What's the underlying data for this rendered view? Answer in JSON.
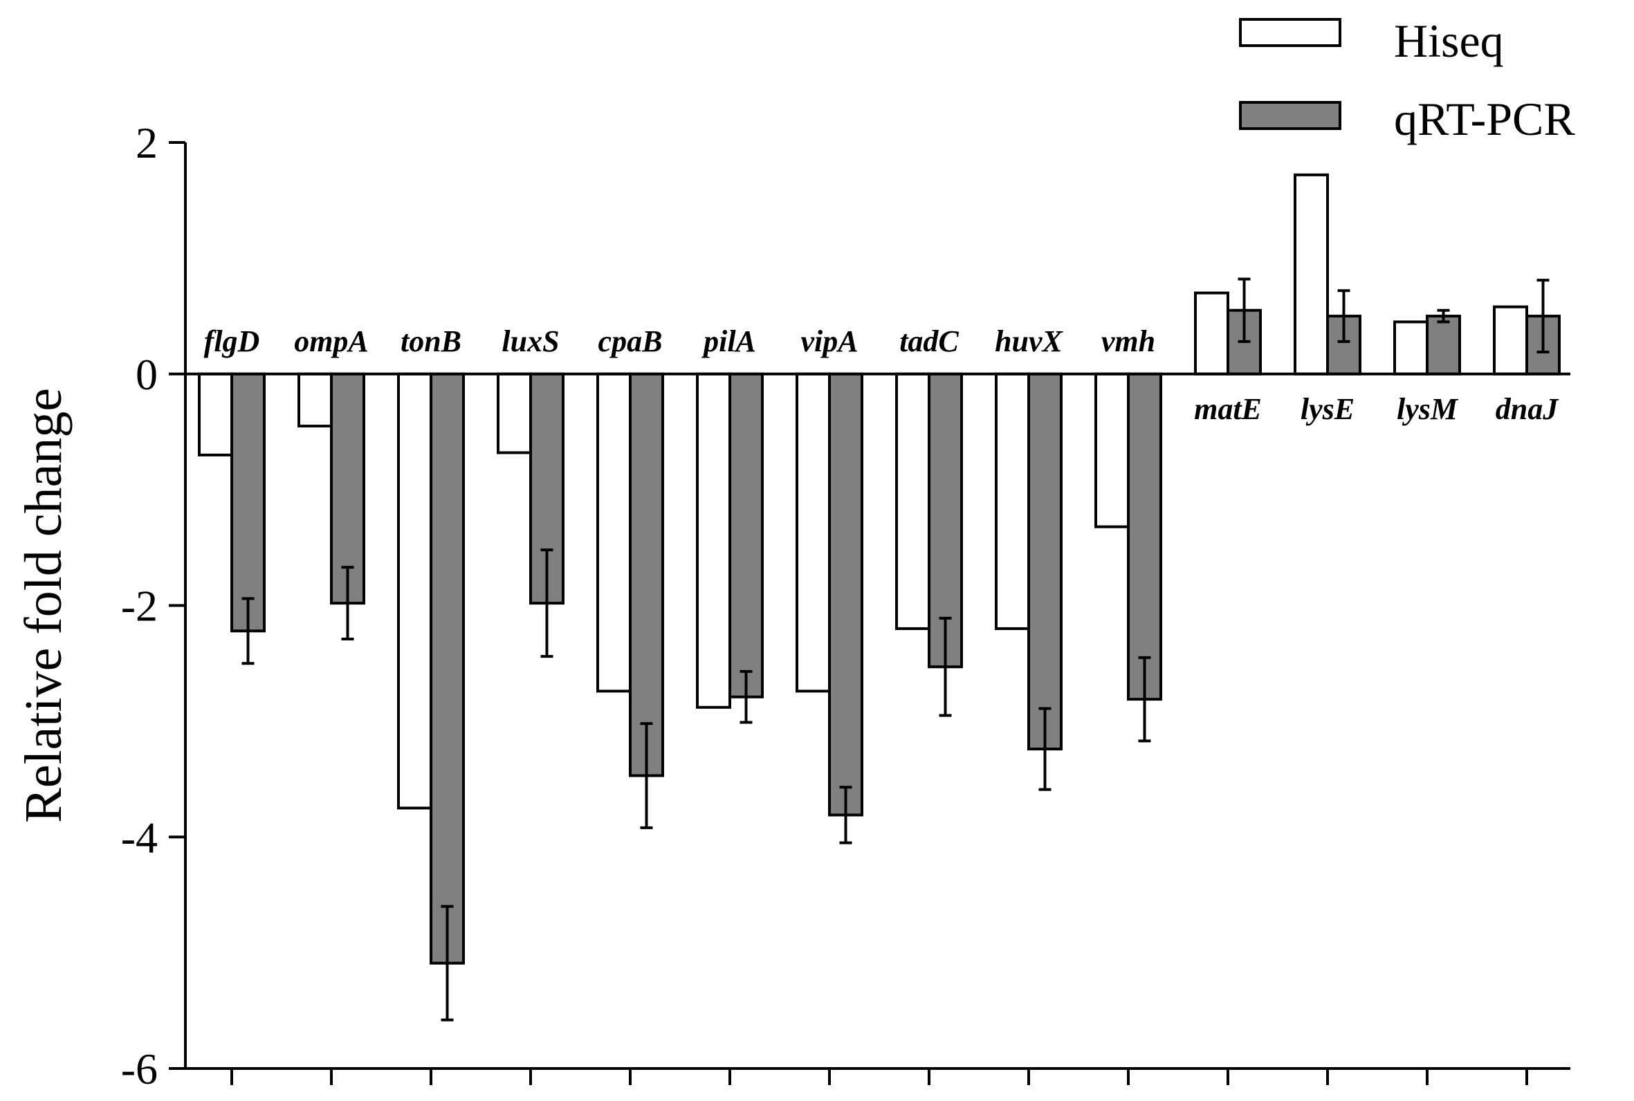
{
  "chart_data": {
    "type": "bar",
    "title": "",
    "xlabel": "",
    "ylabel": "Relative fold change",
    "ylim": [
      -6,
      2
    ],
    "yticks": [
      2,
      0,
      -2,
      -4,
      -6
    ],
    "grid": false,
    "legend_position": "top-right",
    "categories": [
      "flgD",
      "ompA",
      "tonB",
      "luxS",
      "cpaB",
      "pilA",
      "vipA",
      "tadC",
      "huvX",
      "vmh",
      "matE",
      "lysE",
      "lysM",
      "dnaJ"
    ],
    "series": [
      {
        "name": "Hiseq",
        "color": "#ffffff",
        "values": [
          -0.7,
          -0.45,
          -3.75,
          -0.68,
          -2.74,
          -2.88,
          -2.74,
          -2.2,
          -2.2,
          -1.32,
          0.7,
          1.72,
          0.45,
          0.58
        ]
      },
      {
        "name": "qRT-PCR",
        "color": "#808080",
        "values": [
          -2.22,
          -1.98,
          -5.09,
          -1.98,
          -3.47,
          -2.79,
          -3.81,
          -2.53,
          -3.24,
          -2.81,
          0.55,
          0.5,
          0.5,
          0.5
        ],
        "errors": [
          0.28,
          0.31,
          0.49,
          0.46,
          0.45,
          0.22,
          0.24,
          0.42,
          0.35,
          0.36,
          0.27,
          0.22,
          0.05,
          0.31
        ]
      }
    ]
  }
}
